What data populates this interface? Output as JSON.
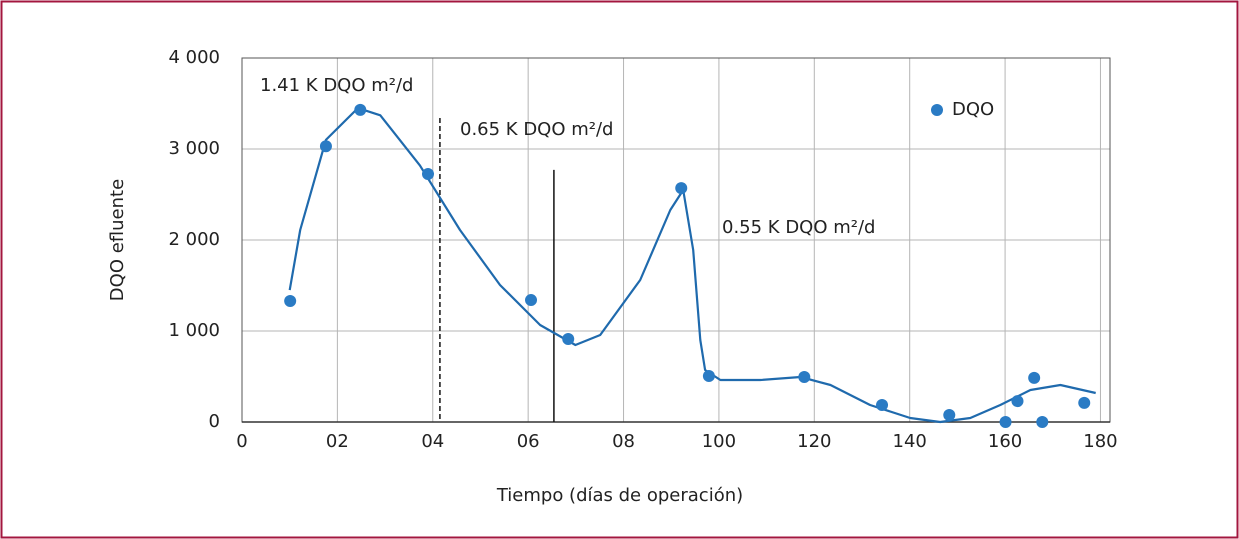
{
  "chart_data": {
    "type": "scatter",
    "xlabel": "Tiempo (días de operación)",
    "ylabel": "DQO efluente",
    "series": [
      {
        "name": "DQO",
        "color": "#2a7bc4",
        "x": [
          10.1,
          17.6,
          24.8,
          39.0,
          60.6,
          68.4,
          92.1,
          97.9,
          117.9,
          134.2,
          148.3,
          160.1,
          162.6,
          166.1,
          167.8,
          176.6
        ],
        "values": [
          1330,
          3030,
          3430,
          2725,
          1340,
          912,
          2570,
          505,
          495,
          187,
          77,
          0,
          230,
          485,
          0,
          210
        ]
      }
    ],
    "trend": {
      "color": "#1f6aad",
      "x": [
        10,
        12.2,
        17.6,
        24.3,
        29,
        37.3,
        45.7,
        54.1,
        62.5,
        69.9,
        75.1,
        83.5,
        89.8,
        92.5,
        94.6,
        96.1,
        97.1,
        100.3,
        108.7,
        117.1,
        123.4,
        131.7,
        140.1,
        146.4,
        152.7,
        159,
        165.3,
        171.6,
        179
      ],
      "values": [
        1450,
        2110,
        3100,
        3450,
        3370,
        2820,
        2110,
        1505,
        1066,
        846,
        956,
        1560,
        2330,
        2550,
        1890,
        900,
        571,
        462,
        462,
        495,
        407,
        187,
        44,
        0,
        44,
        187,
        352,
        407,
        319
      ]
    },
    "vlines": [
      {
        "x": 41.5,
        "ymax": 3340,
        "style": "dashed"
      },
      {
        "x": 65.4,
        "ymax": 2770,
        "style": "solid"
      }
    ],
    "annotations": [
      "1.41 K DQO m²/d",
      "0.65 K DQO m²/d",
      "0.55 K DQO m²/d"
    ],
    "xlim": [
      0,
      182
    ],
    "xticks": [
      0,
      {
        "value": 20,
        "label": "02"
      },
      {
        "value": 40,
        "label": "04"
      },
      {
        "value": 60,
        "label": "06"
      },
      {
        "value": 80,
        "label": "08"
      },
      100,
      120,
      140,
      160,
      180
    ],
    "ylim": [
      0,
      4000
    ],
    "yticks": [
      0,
      {
        "value": 1000,
        "label": "1 000"
      },
      {
        "value": 2000,
        "label": "2 000"
      },
      {
        "value": 3000,
        "label": "3 000"
      },
      {
        "value": 4000,
        "label": "4 000"
      }
    ],
    "grid": true,
    "legend": "upper right"
  }
}
